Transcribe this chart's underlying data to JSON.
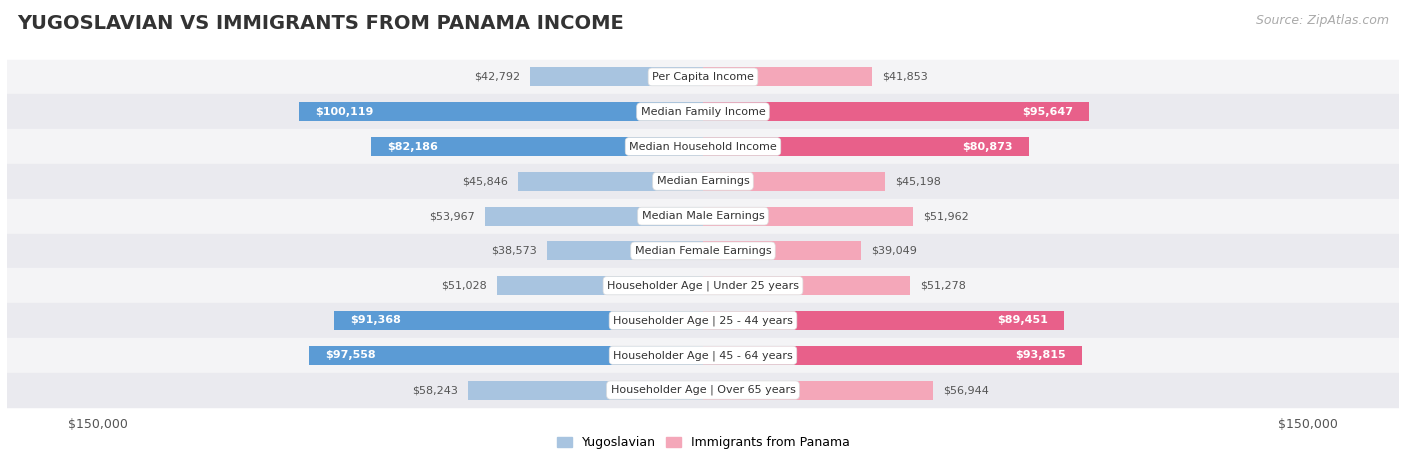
{
  "title": "YUGOSLAVIAN VS IMMIGRANTS FROM PANAMA INCOME",
  "source": "Source: ZipAtlas.com",
  "categories": [
    "Per Capita Income",
    "Median Family Income",
    "Median Household Income",
    "Median Earnings",
    "Median Male Earnings",
    "Median Female Earnings",
    "Householder Age | Under 25 years",
    "Householder Age | 25 - 44 years",
    "Householder Age | 45 - 64 years",
    "Householder Age | Over 65 years"
  ],
  "yugoslavian_values": [
    42792,
    100119,
    82186,
    45846,
    53967,
    38573,
    51028,
    91368,
    97558,
    58243
  ],
  "panama_values": [
    41853,
    95647,
    80873,
    45198,
    51962,
    39049,
    51278,
    89451,
    93815,
    56944
  ],
  "max_value": 150000,
  "bar_height": 0.55,
  "yugoslav_color_light": "#a8c4e0",
  "yugoslav_color_dark": "#5b9bd5",
  "panama_color_light": "#f4a7b9",
  "panama_color_dark": "#e8608a",
  "yugoslav_threshold": 75000,
  "panama_threshold": 75000,
  "label_color_inside": "#ffffff",
  "label_color_outside": "#555555",
  "row_colors": [
    "#f4f4f6",
    "#eaeaef"
  ],
  "title_fontsize": 14,
  "source_fontsize": 9,
  "bar_label_fontsize": 8,
  "axis_label_fontsize": 9,
  "category_fontsize": 8
}
